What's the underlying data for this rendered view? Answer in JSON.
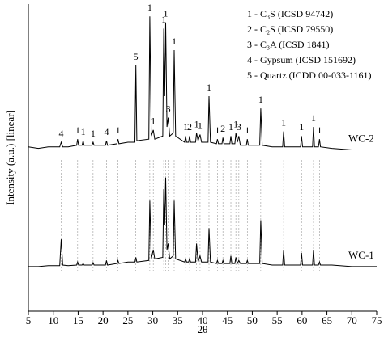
{
  "chart_data": {
    "type": "line",
    "xlabel": "2θ",
    "ylabel": "Intensity (a.u.) [linear]",
    "xlim": [
      5,
      75
    ],
    "xticks": [
      5,
      10,
      15,
      20,
      25,
      30,
      35,
      40,
      45,
      50,
      55,
      60,
      65,
      70,
      75
    ],
    "ylim": [
      0,
      100
    ],
    "x": [
      5,
      7,
      9,
      11.3,
      11.6,
      11.9,
      13,
      14.7,
      14.9,
      15.1,
      15.8,
      16.0,
      16.2,
      17.8,
      18.0,
      18.2,
      20.5,
      20.7,
      20.9,
      22.8,
      23.0,
      23.2,
      25,
      26.4,
      26.6,
      26.8,
      29.2,
      29.4,
      29.7,
      30.1,
      30.4,
      32.0,
      32.2,
      32.4,
      32.6,
      32.85,
      33.1,
      33.4,
      34.1,
      34.3,
      34.6,
      36.4,
      36.6,
      36.8,
      37.2,
      37.4,
      37.6,
      38.6,
      38.8,
      39.1,
      39.5,
      39.8,
      41.1,
      41.3,
      41.6,
      42.8,
      43.0,
      43.2,
      43.9,
      44.1,
      44.3,
      45.5,
      45.7,
      45.9,
      46.5,
      46.7,
      47.0,
      47.3,
      47.6,
      48.8,
      49.0,
      49.2,
      51.5,
      51.7,
      52.0,
      54,
      56.1,
      56.3,
      56.5,
      59.7,
      59.9,
      60.1,
      62.1,
      62.3,
      62.5,
      63.3,
      63.5,
      63.7,
      66,
      70,
      75
    ],
    "series": [
      {
        "name": "WC-2",
        "color": "#000000",
        "values": [
          53.5,
          53,
          53.5,
          53.5,
          55,
          53.5,
          53.5,
          54,
          56,
          54,
          54,
          55.5,
          54,
          54,
          55,
          54,
          54,
          55.5,
          54,
          54.5,
          56,
          54.5,
          55,
          55,
          80,
          55.5,
          56,
          96,
          57,
          59,
          56,
          57,
          92,
          70,
          94,
          60,
          63,
          57,
          58,
          85,
          57,
          55,
          57,
          55,
          55,
          57,
          55,
          55,
          58,
          55.5,
          57.5,
          55,
          55,
          70,
          55,
          54.5,
          56,
          54.5,
          54.5,
          56.5,
          54.5,
          54.5,
          57,
          54.5,
          54.5,
          58,
          55,
          57,
          54,
          54,
          56,
          54,
          54,
          66,
          54,
          53.5,
          53.5,
          58.5,
          53.5,
          53.5,
          57,
          53.5,
          53.5,
          60,
          53.5,
          53.5,
          56,
          53.5,
          53,
          52.5,
          52.5
        ]
      },
      {
        "name": "WC-1",
        "color": "#000000",
        "values": [
          14.5,
          14.5,
          14.8,
          14.8,
          23.4,
          15,
          14.8,
          15,
          16,
          15,
          15,
          15.5,
          15,
          15,
          15.8,
          15,
          15,
          16.5,
          15,
          15.5,
          16.5,
          15.5,
          16,
          16,
          17.5,
          16,
          16.5,
          36,
          17,
          20,
          17,
          17.5,
          39.7,
          28,
          43.5,
          20,
          22,
          17,
          18,
          36,
          17,
          16,
          17,
          16,
          16,
          17,
          16,
          16,
          22,
          16,
          18,
          16,
          16,
          27,
          16,
          15.5,
          16.5,
          15.5,
          15.5,
          16.5,
          15.5,
          15.5,
          18,
          15.5,
          15.5,
          17.5,
          15.5,
          16.5,
          15.5,
          15.5,
          16.5,
          15.5,
          15.5,
          29.6,
          15.5,
          15,
          15,
          20,
          15,
          15,
          19,
          15,
          15,
          20,
          15,
          15,
          16,
          15,
          15,
          14.5,
          14.5
        ]
      }
    ],
    "annotations": [
      {
        "x": 11.6,
        "label": "4"
      },
      {
        "x": 14.9,
        "label": "1"
      },
      {
        "x": 16.0,
        "label": "1"
      },
      {
        "x": 18.0,
        "label": "1"
      },
      {
        "x": 20.7,
        "label": "4"
      },
      {
        "x": 23.0,
        "label": "1"
      },
      {
        "x": 26.6,
        "label": "5"
      },
      {
        "x": 29.4,
        "label": "1"
      },
      {
        "x": 30.1,
        "label": "1"
      },
      {
        "x": 32.2,
        "label": "1"
      },
      {
        "x": 32.6,
        "label": "1"
      },
      {
        "x": 33.1,
        "label": "3"
      },
      {
        "x": 34.3,
        "label": "1"
      },
      {
        "x": 36.6,
        "label": "1"
      },
      {
        "x": 37.4,
        "label": "2"
      },
      {
        "x": 38.8,
        "label": "1"
      },
      {
        "x": 39.5,
        "label": "1"
      },
      {
        "x": 41.3,
        "label": "1"
      },
      {
        "x": 43.0,
        "label": "1"
      },
      {
        "x": 44.1,
        "label": "2"
      },
      {
        "x": 45.7,
        "label": "1"
      },
      {
        "x": 46.7,
        "label": "1"
      },
      {
        "x": 47.3,
        "label": "3"
      },
      {
        "x": 49.0,
        "label": "1"
      },
      {
        "x": 51.7,
        "label": "1"
      },
      {
        "x": 56.3,
        "label": "1"
      },
      {
        "x": 59.9,
        "label": "1"
      },
      {
        "x": 62.3,
        "label": "1"
      },
      {
        "x": 63.5,
        "label": "1"
      }
    ],
    "legend_notes": [
      "1 - C₃S (ICSD 94742)",
      "2 - C₂S (ICSD 79550)",
      "3 - C₃A (ICSD 1841)",
      "4 - Gypsum (ICSD 151692)",
      "5 - Quartz (ICDD 00-033-1161)"
    ]
  }
}
